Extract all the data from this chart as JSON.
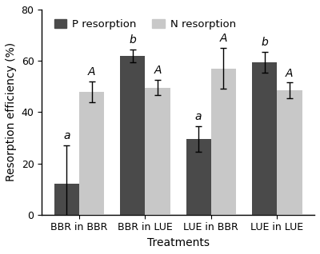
{
  "categories": [
    "BBR in BBR",
    "BBR in LUE",
    "LUE in BBR",
    "LUE in LUE"
  ],
  "p_resorption": [
    12,
    62,
    29.5,
    59.5
  ],
  "n_resorption": [
    48,
    49.5,
    57,
    48.5
  ],
  "p_errors": [
    15,
    2.5,
    5,
    4
  ],
  "n_errors": [
    4,
    3,
    8,
    3
  ],
  "p_color": "#4a4a4a",
  "n_color": "#c8c8c8",
  "p_label": "P resorption",
  "n_label": "N resorption",
  "xlabel": "Treatments",
  "ylabel": "Resorption efficiency (%)",
  "ylim": [
    0,
    80
  ],
  "yticks": [
    0,
    20,
    40,
    60,
    80
  ],
  "p_letters": [
    "a",
    "b",
    "a",
    "b"
  ],
  "n_letters": [
    "A",
    "A",
    "A",
    "A"
  ],
  "bar_width": 0.38,
  "legend_fontsize": 9.5,
  "axis_fontsize": 10,
  "tick_fontsize": 9,
  "letter_fontsize": 10,
  "background_color": "#ffffff"
}
